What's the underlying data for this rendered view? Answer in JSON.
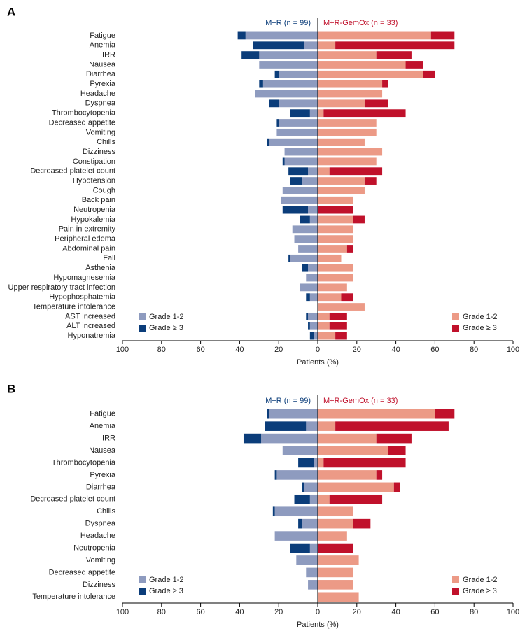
{
  "chart_data": [
    {
      "type": "butterfly",
      "panel": "A",
      "left_title": "M+R (n = 99)",
      "right_title": "M+R-GemOx (n = 33)",
      "xlabel": "Patients (%)",
      "xlim": [
        -100,
        100
      ],
      "xticks": [
        {
          "value": -100,
          "label": "100"
        },
        {
          "value": -80,
          "label": "80"
        },
        {
          "value": -60,
          "label": "60"
        },
        {
          "value": -40,
          "label": "40"
        },
        {
          "value": -20,
          "label": "20"
        },
        0,
        20,
        40,
        60,
        80,
        100
      ],
      "categories": [
        "Fatigue",
        "Anemia",
        "IRR",
        "Nausea",
        "Diarrhea",
        "Pyrexia",
        "Headache",
        "Dyspnea",
        "Thrombocytopenia",
        "Decreased appetite",
        "Vomiting",
        "Chills",
        "Dizziness",
        "Constipation",
        "Decreased platelet count",
        "Hypotension",
        "Cough",
        "Back pain",
        "Neutropenia",
        "Hypokalemia",
        "Pain in extremity",
        "Peripheral edema",
        "Abdominal pain",
        "Fall",
        "Asthenia",
        "Hypomagnesemia",
        "Upper respiratory tract infection",
        "Hypophosphatemia",
        "Temperature intolerance",
        "AST increased",
        "ALT increased",
        "Hyponatremia"
      ],
      "series": [
        {
          "name": "Grade 1-2",
          "side": "left",
          "color": "#8e9bbf",
          "values": [
            37,
            7,
            30,
            30,
            20,
            28,
            32,
            20,
            4,
            20,
            21,
            25,
            17,
            17,
            5,
            8,
            18,
            19,
            5,
            4,
            13,
            12,
            10,
            14,
            5,
            6,
            9,
            4,
            0,
            5,
            4,
            2
          ]
        },
        {
          "name": "Grade ≥ 3",
          "side": "left",
          "color": "#0b3d7a",
          "values": [
            4,
            26,
            9,
            0,
            2,
            2,
            0,
            5,
            10,
            1,
            0,
            1,
            0,
            1,
            10,
            6,
            0,
            0,
            13,
            5,
            0,
            0,
            0,
            1,
            3,
            0,
            0,
            2,
            0,
            1,
            1,
            2
          ]
        },
        {
          "name": "Grade 1-2",
          "side": "right",
          "color": "#ec9a86",
          "values": [
            58,
            9,
            30,
            45,
            54,
            33,
            33,
            24,
            3,
            30,
            30,
            24,
            33,
            30,
            6,
            24,
            24,
            18,
            0,
            18,
            18,
            18,
            15,
            12,
            18,
            18,
            15,
            12,
            24,
            6,
            6,
            9
          ]
        },
        {
          "name": "Grade ≥ 3",
          "side": "right",
          "color": "#c0112b",
          "values": [
            12,
            61,
            18,
            9,
            6,
            3,
            0,
            12,
            42,
            0,
            0,
            0,
            0,
            0,
            27,
            6,
            0,
            0,
            18,
            6,
            0,
            0,
            3,
            0,
            0,
            0,
            0,
            6,
            0,
            9,
            9,
            6
          ]
        }
      ]
    },
    {
      "type": "butterfly",
      "panel": "B",
      "left_title": "M+R (n = 99)",
      "right_title": "M+R-GemOx (n = 33)",
      "xlabel": "Patients (%)",
      "xlim": [
        -100,
        100
      ],
      "xticks": [
        {
          "value": -100,
          "label": "100"
        },
        {
          "value": -80,
          "label": "80"
        },
        {
          "value": -60,
          "label": "60"
        },
        {
          "value": -40,
          "label": "40"
        },
        {
          "value": -20,
          "label": "20"
        },
        0,
        20,
        40,
        60,
        80,
        100
      ],
      "categories": [
        "Fatigue",
        "Anemia",
        "IRR",
        "Nausea",
        "Thrombocytopenia",
        "Pyrexia",
        "Diarrhea",
        "Decreased platelet count",
        "Chills",
        "Dyspnea",
        "Headache",
        "Neutropenia",
        "Vomiting",
        "Decreased appetite",
        "Dizziness",
        "Temperature intolerance"
      ],
      "series": [
        {
          "name": "Grade 1-2",
          "side": "left",
          "color": "#8e9bbf",
          "values": [
            25,
            6,
            29,
            18,
            2,
            21,
            7,
            4,
            22,
            8,
            22,
            4,
            11,
            6,
            5,
            0
          ]
        },
        {
          "name": "Grade ≥ 3",
          "side": "left",
          "color": "#0b3d7a",
          "values": [
            1,
            21,
            9,
            0,
            8,
            1,
            1,
            8,
            1,
            2,
            0,
            10,
            0,
            0,
            0,
            0
          ]
        },
        {
          "name": "Grade 1-2",
          "side": "right",
          "color": "#ec9a86",
          "values": [
            60,
            9,
            30,
            36,
            3,
            30,
            39,
            6,
            18,
            18,
            15,
            0,
            21,
            18,
            18,
            21
          ]
        },
        {
          "name": "Grade ≥ 3",
          "side": "right",
          "color": "#c0112b",
          "values": [
            10,
            58,
            18,
            9,
            42,
            3,
            3,
            27,
            0,
            9,
            0,
            18,
            0,
            0,
            0,
            0
          ]
        }
      ]
    }
  ]
}
